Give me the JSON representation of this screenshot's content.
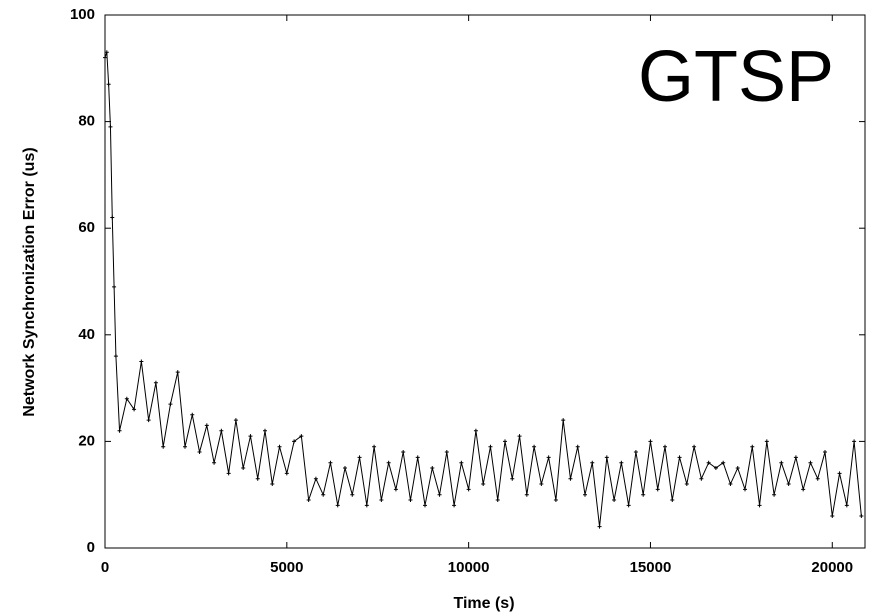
{
  "chart_data": {
    "type": "line",
    "annotation": "GTSP",
    "x_label": "Time (s)",
    "y_label": "Network Synchronization Error (us)",
    "xlim": [
      0,
      20900
    ],
    "ylim": [
      0,
      100
    ],
    "xticks": [
      0,
      5000,
      10000,
      15000,
      20000
    ],
    "yticks": [
      0,
      20,
      40,
      60,
      80,
      100
    ],
    "series": [
      {
        "color": "#000000",
        "x": [
          0,
          50,
          100,
          150,
          200,
          250,
          300,
          400,
          600,
          800,
          1000,
          1200,
          1400,
          1600,
          1800,
          2000,
          2200,
          2400,
          2600,
          2800,
          3000,
          3200,
          3400,
          3600,
          3800,
          4000,
          4200,
          4400,
          4600,
          4800,
          5000,
          5200,
          5400,
          5600,
          5800,
          6000,
          6200,
          6400,
          6600,
          6800,
          7000,
          7200,
          7400,
          7600,
          7800,
          8000,
          8200,
          8400,
          8600,
          8800,
          9000,
          9200,
          9400,
          9600,
          9800,
          10000,
          10200,
          10400,
          10600,
          10800,
          11000,
          11200,
          11400,
          11600,
          11800,
          12000,
          12200,
          12400,
          12600,
          12800,
          13000,
          13200,
          13400,
          13600,
          13800,
          14000,
          14200,
          14400,
          14600,
          14800,
          15000,
          15200,
          15400,
          15600,
          15800,
          16000,
          16200,
          16400,
          16600,
          16800,
          17000,
          17200,
          17400,
          17600,
          17800,
          18000,
          18200,
          18400,
          18600,
          18800,
          19000,
          19200,
          19400,
          19600,
          19800,
          20000,
          20200,
          20400,
          20600,
          20800
        ],
        "values": [
          92,
          93,
          87,
          79,
          62,
          49,
          36,
          22,
          28,
          26,
          35,
          24,
          31,
          19,
          27,
          33,
          19,
          25,
          18,
          23,
          16,
          22,
          14,
          24,
          15,
          21,
          13,
          22,
          12,
          19,
          14,
          20,
          21,
          9,
          13,
          10,
          16,
          8,
          15,
          10,
          17,
          8,
          19,
          9,
          16,
          11,
          18,
          9,
          17,
          8,
          15,
          10,
          18,
          8,
          16,
          11,
          22,
          12,
          19,
          9,
          20,
          13,
          21,
          10,
          19,
          12,
          17,
          9,
          24,
          13,
          19,
          10,
          16,
          4,
          17,
          9,
          16,
          8,
          18,
          10,
          20,
          11,
          19,
          9,
          17,
          12,
          19,
          13,
          16,
          15,
          16,
          12,
          15,
          11,
          19,
          8,
          20,
          10,
          16,
          12,
          17,
          11,
          16,
          13,
          18,
          6,
          14,
          8,
          20,
          6
        ]
      }
    ]
  }
}
